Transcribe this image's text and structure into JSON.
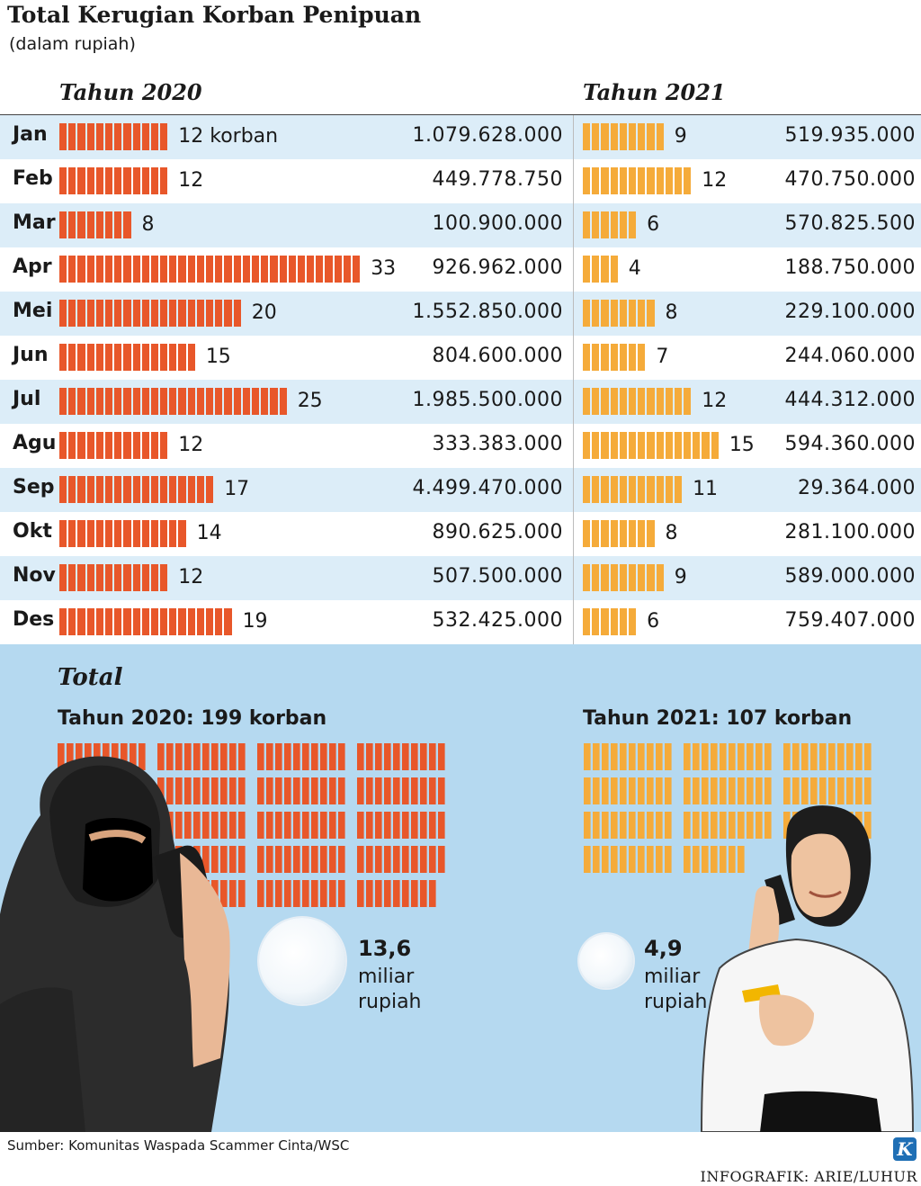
{
  "title": "Total Kerugian Korban Penipuan",
  "subtitle": "(dalam rupiah)",
  "colors": {
    "bar2020": "#e8572a",
    "bar2021": "#f5ab3a",
    "panel": "#b5d9f0",
    "row_shade": "#dcedf8"
  },
  "chart_data": {
    "type": "bar",
    "series_headers": [
      "Tahun 2020",
      "Tahun 2021"
    ],
    "categories": [
      "Jan",
      "Feb",
      "Mar",
      "Apr",
      "Mei",
      "Jun",
      "Jul",
      "Agu",
      "Sep",
      "Okt",
      "Nov",
      "Des"
    ],
    "first_count_suffix": " korban",
    "series": [
      {
        "name": "Tahun 2020",
        "color": "#e8572a",
        "counts": [
          12,
          12,
          8,
          33,
          20,
          15,
          25,
          12,
          17,
          14,
          12,
          19
        ],
        "losses": [
          "1.079.628.000",
          "449.778.750",
          "100.900.000",
          "926.962.000",
          "1.552.850.000",
          "804.600.000",
          "1.985.500.000",
          "333.383.000",
          "4.499.470.000",
          "890.625.000",
          "507.500.000",
          "532.425.000"
        ]
      },
      {
        "name": "Tahun 2021",
        "color": "#f5ab3a",
        "counts": [
          9,
          12,
          6,
          4,
          8,
          7,
          12,
          15,
          11,
          8,
          9,
          6
        ],
        "losses": [
          "519.935.000",
          "470.750.000",
          "570.825.500",
          "188.750.000",
          "229.100.000",
          "244.060.000",
          "444.312.000",
          "594.360.000",
          "29.364.000",
          "281.100.000",
          "589.000.000",
          "759.407.000"
        ]
      }
    ]
  },
  "totals": {
    "heading": "Total",
    "y2020": {
      "label": "Tahun 2020: 199 korban",
      "victims": 199,
      "amount": "13,6",
      "unit_line1": "miliar",
      "unit_line2": "rupiah"
    },
    "y2021": {
      "label": "Tahun 2021: 107 korban",
      "victims": 107,
      "amount": "4,9",
      "unit_line1": "miliar",
      "unit_line2": "rupiah"
    }
  },
  "illustrations": {
    "left": "hooded-scammer-on-phone",
    "right": "woman-on-phone-holding-card"
  },
  "source": "Sumber: Komunitas Waspada Scammer Cinta/WSC",
  "credit": "INFOGRAFIK: ARIE/LUHUR",
  "logo_letter": "K"
}
